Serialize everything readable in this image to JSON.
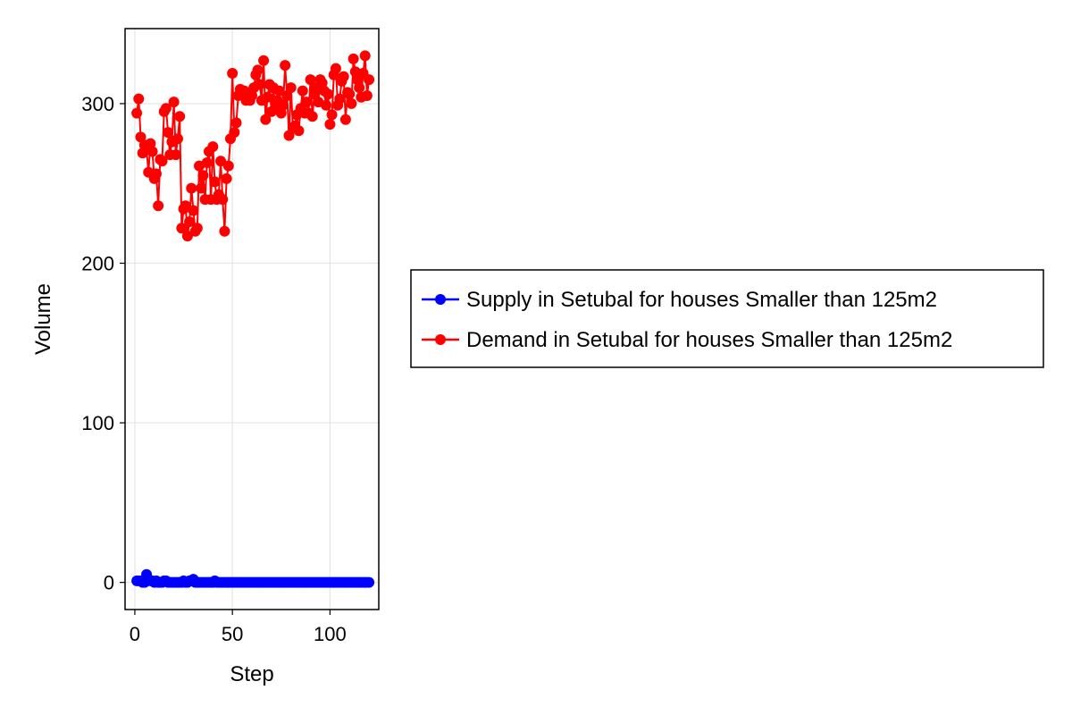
{
  "chart_data": {
    "type": "line",
    "xlabel": "Step",
    "ylabel": "Volume",
    "xlim": [
      -5,
      125
    ],
    "ylim": [
      -17,
      347
    ],
    "xticks": [
      0,
      50,
      100
    ],
    "yticks": [
      0,
      100,
      200,
      300
    ],
    "grid": true,
    "legend_position": "right",
    "series": [
      {
        "name": "Supply in Setubal for houses Smaller than 125m2",
        "color": "#0000ff",
        "x": [
          1,
          2,
          3,
          4,
          5,
          6,
          7,
          8,
          9,
          10,
          11,
          12,
          13,
          14,
          15,
          16,
          17,
          18,
          19,
          20,
          21,
          22,
          23,
          24,
          25,
          26,
          27,
          28,
          29,
          30,
          31,
          32,
          33,
          34,
          35,
          36,
          37,
          38,
          39,
          40,
          41,
          42,
          43,
          44,
          45,
          46,
          47,
          48,
          49,
          50,
          51,
          52,
          53,
          54,
          55,
          56,
          57,
          58,
          59,
          60,
          61,
          62,
          63,
          64,
          65,
          66,
          67,
          68,
          69,
          70,
          71,
          72,
          73,
          74,
          75,
          76,
          77,
          78,
          79,
          80,
          81,
          82,
          83,
          84,
          85,
          86,
          87,
          88,
          89,
          90,
          91,
          92,
          93,
          94,
          95,
          96,
          97,
          98,
          99,
          100,
          101,
          102,
          103,
          104,
          105,
          106,
          107,
          108,
          109,
          110,
          111,
          112,
          113,
          114,
          115,
          116,
          117,
          118,
          119,
          120
        ],
        "y": [
          1,
          1,
          1,
          0,
          0,
          5,
          2,
          1,
          1,
          0,
          1,
          0,
          0,
          0,
          1,
          1,
          0,
          0,
          0,
          0,
          0,
          0,
          0,
          0,
          1,
          0,
          0,
          1,
          1,
          2,
          0,
          0,
          0,
          0,
          0,
          0,
          0,
          0,
          0,
          0,
          1,
          0,
          0,
          0,
          0,
          0,
          0,
          0,
          0,
          0,
          0,
          0,
          0,
          0,
          0,
          0,
          0,
          0,
          0,
          0,
          0,
          0,
          0,
          0,
          0,
          0,
          0,
          0,
          0,
          0,
          0,
          0,
          0,
          0,
          0,
          0,
          0,
          0,
          0,
          0,
          0,
          0,
          0,
          0,
          0,
          0,
          0,
          0,
          0,
          0,
          0,
          0,
          0,
          0,
          0,
          0,
          0,
          0,
          0,
          0,
          0,
          0,
          0,
          0,
          0,
          0,
          0,
          0,
          0,
          0,
          0,
          0,
          0,
          0,
          0,
          0,
          0,
          0,
          0,
          0
        ]
      },
      {
        "name": "Demand in Setubal for houses Smaller than 125m2",
        "color": "#ff0000",
        "x": [
          1,
          2,
          3,
          4,
          5,
          6,
          7,
          8,
          9,
          10,
          11,
          12,
          13,
          14,
          15,
          16,
          17,
          18,
          19,
          20,
          21,
          22,
          23,
          24,
          25,
          26,
          27,
          28,
          29,
          30,
          31,
          32,
          33,
          34,
          35,
          36,
          37,
          38,
          39,
          40,
          41,
          42,
          43,
          44,
          45,
          46,
          47,
          48,
          49,
          50,
          51,
          52,
          53,
          54,
          55,
          56,
          57,
          58,
          59,
          60,
          61,
          62,
          63,
          64,
          65,
          66,
          67,
          68,
          69,
          70,
          71,
          72,
          73,
          74,
          75,
          76,
          77,
          78,
          79,
          80,
          81,
          82,
          83,
          84,
          85,
          86,
          87,
          88,
          89,
          90,
          91,
          92,
          93,
          94,
          95,
          96,
          97,
          98,
          99,
          100,
          101,
          102,
          103,
          104,
          105,
          106,
          107,
          108,
          109,
          110,
          111,
          112,
          113,
          114,
          115,
          116,
          117,
          118,
          119,
          120
        ],
        "y": [
          294,
          303,
          279,
          269,
          274,
          271,
          257,
          275,
          270,
          253,
          256,
          236,
          265,
          264,
          295,
          297,
          282,
          268,
          276,
          301,
          268,
          278,
          292,
          222,
          234,
          236,
          217,
          226,
          247,
          233,
          220,
          222,
          261,
          247,
          255,
          240,
          263,
          270,
          240,
          273,
          251,
          240,
          243,
          264,
          240,
          220,
          253,
          261,
          278,
          319,
          282,
          288,
          305,
          309,
          306,
          308,
          302,
          306,
          302,
          305,
          310,
          318,
          321,
          312,
          302,
          327,
          290,
          304,
          312,
          295,
          310,
          297,
          302,
          308,
          294,
          299,
          324,
          305,
          280,
          310,
          285,
          286,
          293,
          283,
          297,
          308,
          294,
          301,
          294,
          315,
          292,
          306,
          310,
          301,
          315,
          313,
          308,
          299,
          306,
          287,
          293,
          318,
          322,
          299,
          303,
          314,
          317,
          290,
          307,
          306,
          300,
          328,
          320,
          315,
          310,
          304,
          319,
          330,
          305,
          315
        ]
      }
    ]
  }
}
